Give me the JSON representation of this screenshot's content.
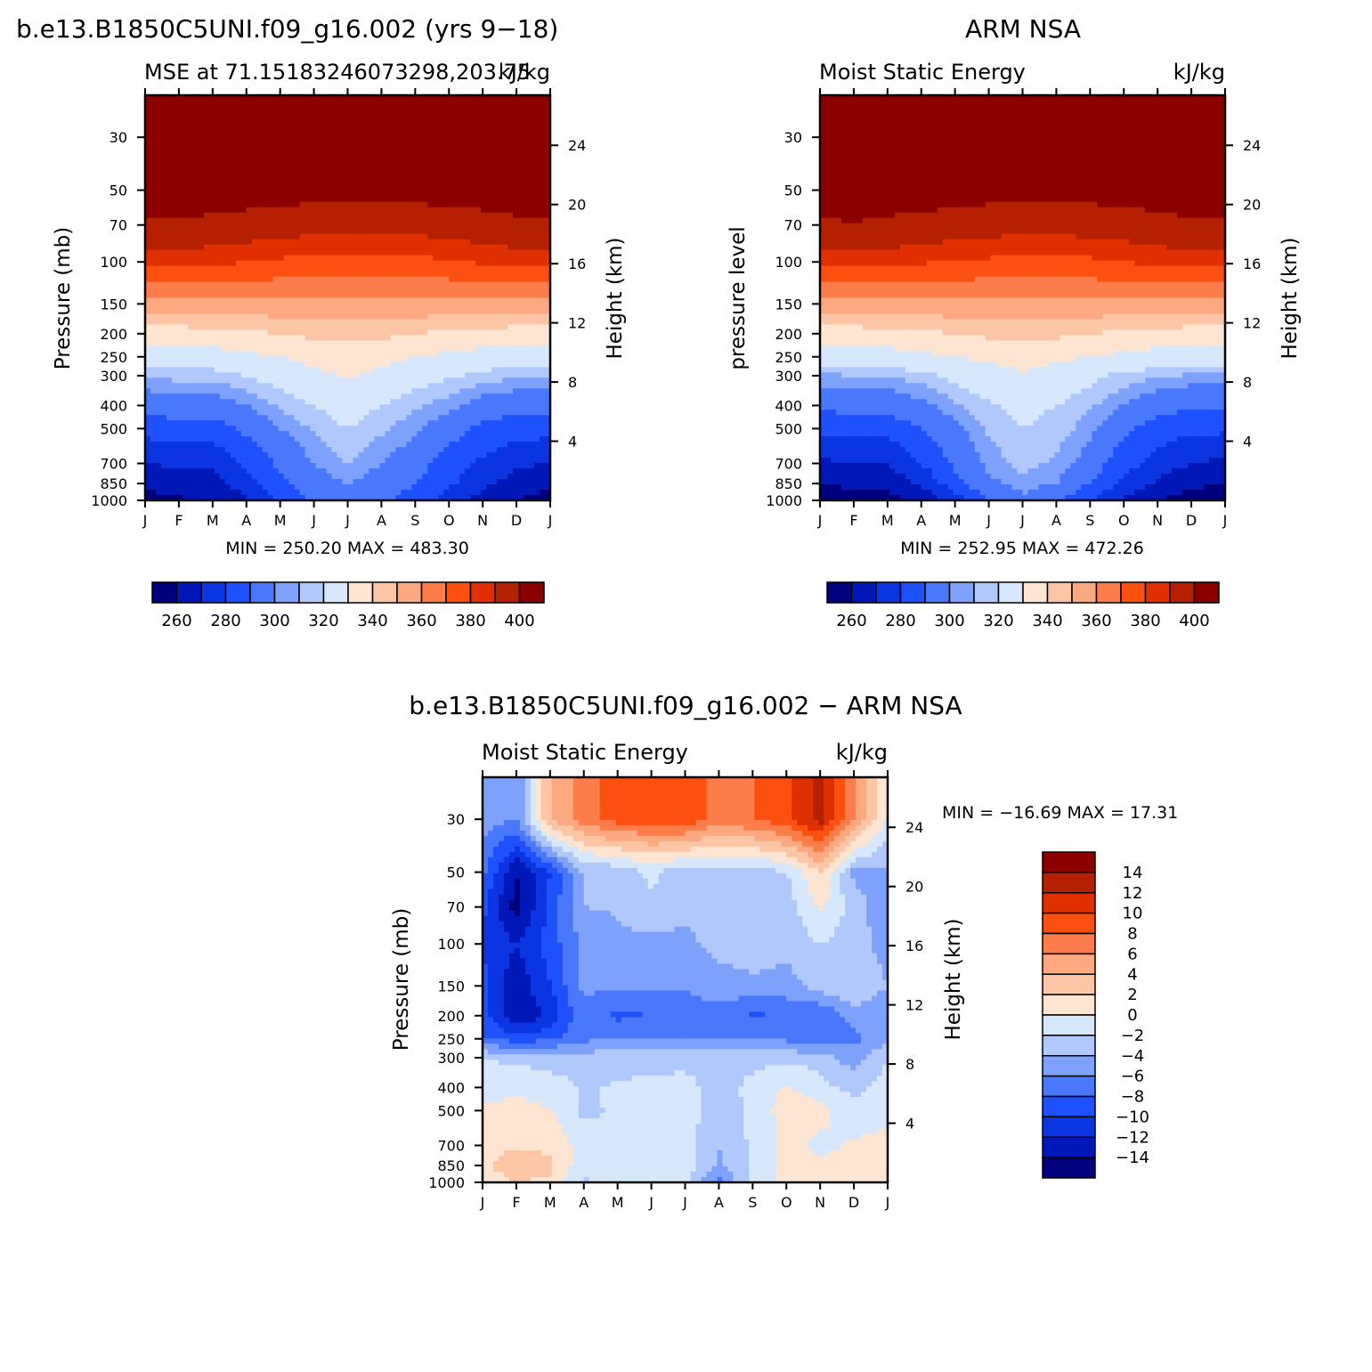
{
  "colors": {
    "mse_fills": [
      "#00007f",
      "#0018b8",
      "#0a35e0",
      "#1e50fc",
      "#4a78fc",
      "#7ea2fc",
      "#b0c8fc",
      "#d8e8fc",
      "#fde5d2",
      "#fcc6a6",
      "#fca880",
      "#fc7c4a",
      "#fc5010",
      "#e03000",
      "#b42000",
      "#8c0000"
    ],
    "diff_fills": [
      "#00007f",
      "#0018b8",
      "#0a35e0",
      "#1e50fc",
      "#4a78fc",
      "#7ea2fc",
      "#b0c8fc",
      "#d8e8fc",
      "#fde5d2",
      "#fcc6a6",
      "#fca880",
      "#fc7c4a",
      "#fc5010",
      "#e03000",
      "#b42000",
      "#8c0000"
    ]
  },
  "chart_data": [
    {
      "type": "heatmap",
      "figure_title": "b.e13.B1850C5UNI.f09_g16.002 (yrs 9−18)",
      "left_title": "MSE at 71.15183246073298,203.75",
      "right_title": "kJ/kg",
      "ylabel": "Pressure (mb)",
      "ylabel_right": "Height (km)",
      "x_ticks": [
        "J",
        "F",
        "M",
        "A",
        "M",
        "J",
        "J",
        "A",
        "S",
        "O",
        "N",
        "D",
        "J"
      ],
      "p_ticks": [
        30,
        50,
        70,
        100,
        150,
        200,
        250,
        300,
        400,
        500,
        700,
        850,
        1000
      ],
      "h_ticks": [
        24,
        20,
        16,
        12,
        8,
        4
      ],
      "ylim_mb": [
        1000,
        20
      ],
      "stats": "MIN = 250.20 MAX = 483.30",
      "colorbar": {
        "orientation": "horizontal",
        "levels": [
          255,
          260,
          265,
          270,
          275,
          280,
          285,
          290,
          295,
          300,
          305,
          310,
          315,
          320,
          325,
          330,
          335,
          340,
          345,
          350,
          355,
          360,
          365,
          370,
          375,
          380,
          385,
          390,
          395,
          400
        ],
        "labels": [
          "260",
          "280",
          "300",
          "320",
          "340",
          "360",
          "380",
          "400"
        ]
      },
      "field": {
        "months": [
          "J",
          "F",
          "M",
          "A",
          "M",
          "J",
          "J",
          "A",
          "S",
          "O",
          "N",
          "D",
          "J"
        ],
        "levels_mb": [
          1000,
          850,
          700,
          500,
          400,
          300,
          250,
          200,
          150,
          100,
          70,
          50,
          30
        ],
        "values": [
          [
            256,
            259,
            260,
            268,
            282,
            292,
            296,
            292,
            286,
            276,
            266,
            260,
            256
          ],
          [
            262,
            265,
            266,
            276,
            288,
            296,
            300,
            296,
            290,
            282,
            272,
            266,
            262
          ],
          [
            270,
            272,
            272,
            282,
            292,
            300,
            305,
            300,
            294,
            286,
            278,
            272,
            270
          ],
          [
            284,
            286,
            286,
            292,
            300,
            306,
            310,
            306,
            302,
            294,
            288,
            284,
            284
          ],
          [
            294,
            296,
            296,
            300,
            306,
            310,
            314,
            310,
            306,
            302,
            296,
            294,
            294
          ],
          [
            306,
            307,
            307,
            310,
            314,
            318,
            321,
            318,
            314,
            311,
            308,
            306,
            306
          ],
          [
            314,
            315,
            316,
            318,
            320,
            323,
            325,
            323,
            320,
            318,
            316,
            315,
            314
          ],
          [
            324,
            325,
            326,
            328,
            330,
            332,
            333,
            332,
            330,
            328,
            326,
            325,
            324
          ],
          [
            346,
            347,
            347,
            347,
            348,
            348,
            348,
            348,
            348,
            347,
            347,
            347,
            346
          ],
          [
            372,
            373,
            372,
            370,
            368,
            367,
            366,
            366,
            367,
            369,
            371,
            373,
            372
          ],
          [
            392,
            393,
            391,
            389,
            387,
            385,
            384,
            384,
            385,
            387,
            389,
            392,
            392
          ],
          [
            404,
            405,
            404,
            403,
            402,
            401,
            401,
            401,
            401,
            402,
            403,
            404,
            404
          ],
          [
            440,
            442,
            441,
            440,
            440,
            440,
            440,
            440,
            440,
            440,
            441,
            442,
            440
          ]
        ]
      }
    },
    {
      "type": "heatmap",
      "figure_title": "ARM NSA",
      "left_title": "Moist Static Energy",
      "right_title": "kJ/kg",
      "ylabel": "pressure level",
      "ylabel_right": "Height (km)",
      "x_ticks": [
        "J",
        "F",
        "M",
        "A",
        "M",
        "J",
        "J",
        "A",
        "S",
        "O",
        "N",
        "D",
        "J"
      ],
      "p_ticks": [
        30,
        50,
        70,
        100,
        150,
        200,
        250,
        300,
        400,
        500,
        700,
        850,
        1000
      ],
      "h_ticks": [
        24,
        20,
        16,
        12,
        8,
        4
      ],
      "ylim_mb": [
        1000,
        20
      ],
      "stats": "MIN = 252.95 MAX = 472.26",
      "colorbar": {
        "orientation": "horizontal",
        "levels": [
          255,
          260,
          265,
          270,
          275,
          280,
          285,
          290,
          295,
          300,
          305,
          310,
          315,
          320,
          325,
          330,
          335,
          340,
          345,
          350,
          355,
          360,
          365,
          370,
          375,
          380,
          385,
          390,
          395,
          400
        ],
        "labels": [
          "260",
          "280",
          "300",
          "320",
          "340",
          "360",
          "380",
          "400"
        ]
      },
      "field": {
        "months": [
          "J",
          "F",
          "M",
          "A",
          "M",
          "J",
          "J",
          "A",
          "S",
          "O",
          "N",
          "D",
          "J"
        ],
        "levels_mb": [
          1000,
          850,
          700,
          500,
          400,
          300,
          250,
          200,
          150,
          100,
          70,
          50,
          30
        ],
        "values": [
          [
            254,
            255,
            256,
            262,
            275,
            290,
            298,
            292,
            280,
            268,
            260,
            256,
            254
          ],
          [
            260,
            262,
            263,
            272,
            286,
            298,
            303,
            300,
            290,
            278,
            268,
            262,
            260
          ],
          [
            268,
            270,
            270,
            280,
            292,
            302,
            307,
            304,
            296,
            284,
            276,
            270,
            268
          ],
          [
            282,
            284,
            284,
            290,
            298,
            306,
            310,
            308,
            302,
            292,
            286,
            282,
            282
          ],
          [
            292,
            294,
            294,
            298,
            304,
            309,
            312,
            310,
            306,
            300,
            294,
            292,
            292
          ],
          [
            304,
            305,
            305,
            308,
            312,
            316,
            319,
            316,
            312,
            308,
            306,
            304,
            304
          ],
          [
            314,
            315,
            316,
            318,
            320,
            322,
            324,
            322,
            320,
            318,
            316,
            315,
            314
          ],
          [
            324,
            325,
            326,
            328,
            330,
            332,
            333,
            332,
            330,
            328,
            326,
            325,
            324
          ],
          [
            346,
            347,
            347,
            347,
            348,
            348,
            348,
            348,
            348,
            347,
            347,
            347,
            346
          ],
          [
            373,
            374,
            373,
            371,
            369,
            368,
            367,
            367,
            368,
            370,
            372,
            374,
            373
          ],
          [
            393,
            394,
            392,
            390,
            388,
            386,
            385,
            385,
            386,
            388,
            390,
            393,
            393
          ],
          [
            404,
            405,
            404,
            403,
            402,
            401,
            401,
            401,
            401,
            402,
            403,
            404,
            404
          ],
          [
            438,
            440,
            439,
            438,
            438,
            438,
            438,
            438,
            438,
            438,
            439,
            440,
            438
          ]
        ]
      }
    },
    {
      "type": "heatmap",
      "figure_title": "b.e13.B1850C5UNI.f09_g16.002 − ARM NSA",
      "left_title": "Moist Static Energy",
      "right_title": "kJ/kg",
      "ylabel": "Pressure (mb)",
      "ylabel_right": "Height (km)",
      "x_ticks": [
        "J",
        "F",
        "M",
        "A",
        "M",
        "J",
        "J",
        "A",
        "S",
        "O",
        "N",
        "D",
        "J"
      ],
      "p_ticks": [
        30,
        50,
        70,
        100,
        150,
        200,
        250,
        300,
        400,
        500,
        700,
        850,
        1000
      ],
      "h_ticks": [
        24,
        20,
        16,
        12,
        8,
        4
      ],
      "ylim_mb": [
        1000,
        20
      ],
      "stats": "MIN = −16.69 MAX =   17.31",
      "colorbar": {
        "orientation": "vertical",
        "levels": [
          -14,
          -12,
          -10,
          -8,
          -6,
          -4,
          -2,
          0,
          2,
          4,
          6,
          8,
          10,
          12,
          14
        ],
        "labels": [
          "14",
          "12",
          "10",
          "8",
          "6",
          "4",
          "2",
          "0",
          "−2",
          "−4",
          "−6",
          "−8",
          "−10",
          "−12",
          "−14"
        ]
      },
      "field": {
        "months": [
          "J",
          "F",
          "M",
          "A",
          "M",
          "J",
          "J",
          "A",
          "S",
          "O",
          "N",
          "D",
          "J"
        ],
        "levels_mb": [
          1000,
          850,
          700,
          500,
          400,
          300,
          250,
          200,
          150,
          100,
          70,
          50,
          30
        ],
        "values": [
          [
            1.0,
            2.0,
            1.6,
            -2.4,
            -1.0,
            -1.2,
            -1.6,
            -6.5,
            -1.8,
            0.8,
            0.6,
            0.3,
            0.1
          ],
          [
            1.5,
            3.2,
            2.5,
            -1.5,
            -1.6,
            -1.6,
            -0.4,
            -4.5,
            -1.6,
            0.7,
            0.6,
            0.3,
            0.2
          ],
          [
            1.2,
            1.8,
            1.5,
            -0.8,
            -1.8,
            -1.5,
            -1.0,
            -4.0,
            -1.6,
            0.8,
            -0.6,
            0.3,
            0.6
          ],
          [
            0.6,
            0.6,
            0.2,
            -2.5,
            -1.6,
            -1.2,
            -1.0,
            -3.2,
            -1.5,
            1.0,
            0.8,
            -1.5,
            -0.4
          ],
          [
            -1.0,
            -0.5,
            -1.0,
            -2.2,
            -1.8,
            -1.5,
            -1.2,
            -3.0,
            -1.4,
            0.3,
            -1.4,
            -2.5,
            -1.2
          ],
          [
            -2.0,
            -2.5,
            -3.0,
            -3.0,
            -2.8,
            -2.8,
            -2.7,
            -3.0,
            -2.6,
            -2.5,
            -2.8,
            -5.2,
            -2.0
          ],
          [
            -8.0,
            -9.0,
            -8.5,
            -6.5,
            -6.0,
            -6.2,
            -6.0,
            -6.0,
            -5.8,
            -6.5,
            -8.0,
            -6.5,
            -5.0
          ],
          [
            -9.0,
            -14.0,
            -11.5,
            -6.5,
            -8.5,
            -8.0,
            -7.0,
            -6.5,
            -8.5,
            -7.5,
            -8.0,
            -5.0,
            -6.0
          ],
          [
            -9.5,
            -13.5,
            -10.0,
            -5.5,
            -5.8,
            -5.8,
            -5.8,
            -5.2,
            -4.5,
            -5.0,
            -3.0,
            -2.0,
            -4.0
          ],
          [
            -10.0,
            -12.0,
            -9.0,
            -5.5,
            -4.5,
            -4.6,
            -4.8,
            -3.0,
            -2.8,
            -3.2,
            -2.0,
            -3.0,
            -5.0
          ],
          [
            -9.5,
            -15.0,
            -9.5,
            -4.0,
            -3.8,
            -2.5,
            -3.0,
            -3.2,
            -3.0,
            -3.2,
            0.4,
            -3.0,
            -5.5
          ],
          [
            -7.5,
            -14.0,
            -10.0,
            -3.8,
            -3.5,
            -1.5,
            -3.5,
            -3.0,
            -3.2,
            -2.0,
            2.0,
            -4.5,
            -4.5
          ],
          [
            -5.0,
            -6.0,
            4.0,
            7.0,
            9.0,
            9.0,
            9.5,
            7.0,
            8.0,
            9.5,
            13.0,
            6.0,
            -0.5
          ]
        ]
      }
    }
  ]
}
